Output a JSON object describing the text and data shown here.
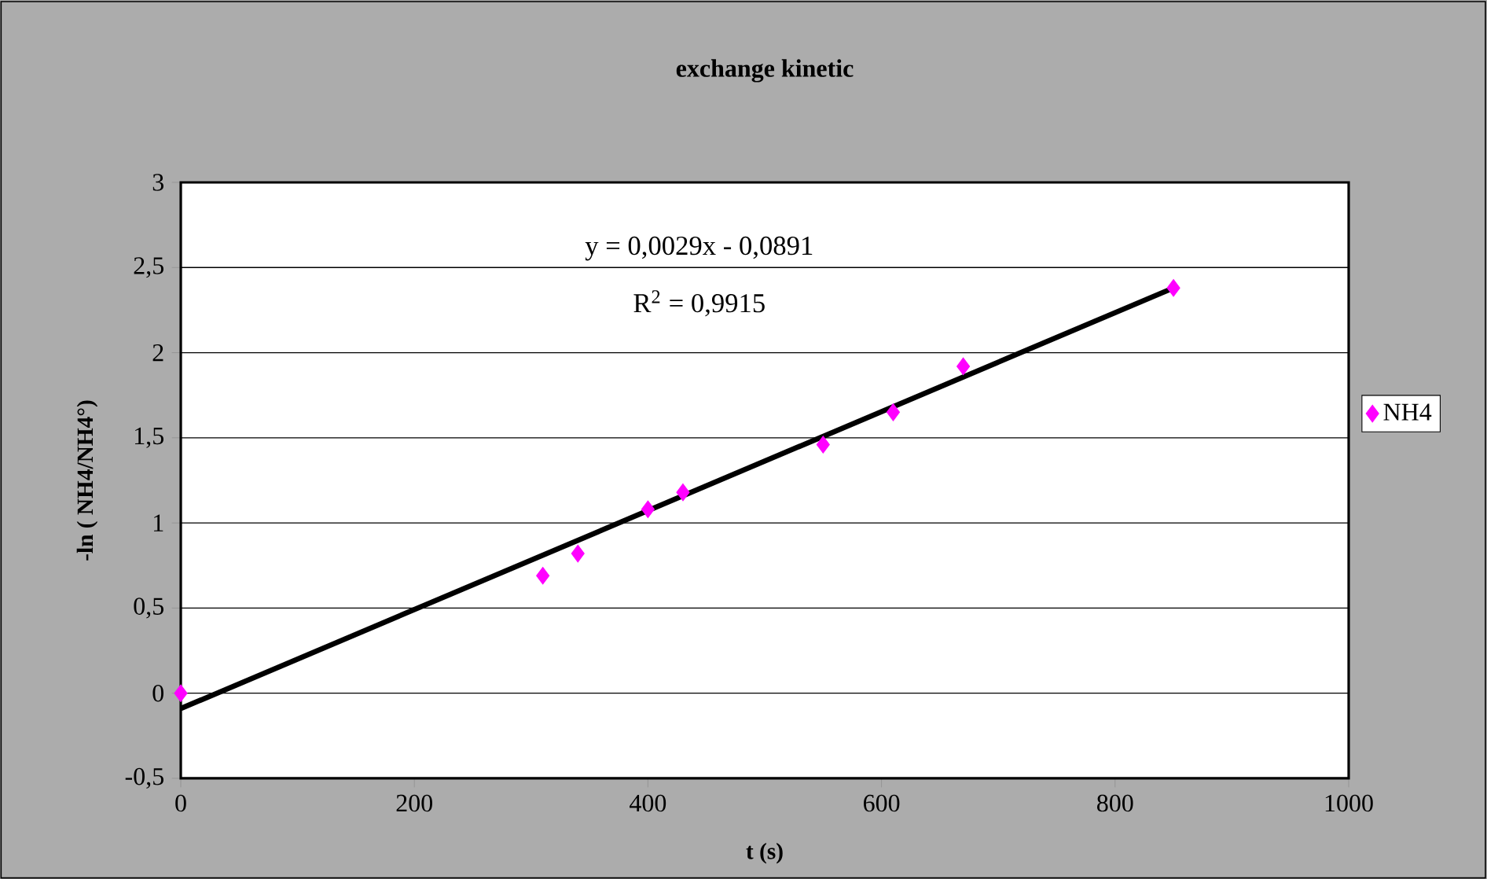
{
  "chart_data": {
    "type": "scatter",
    "title": "exchange kinetic",
    "xlabel": "t (s)",
    "ylabel": "-ln ( NH4/NH4°)",
    "xlim": [
      0,
      1000
    ],
    "xticks": [
      0,
      200,
      400,
      600,
      800,
      1000
    ],
    "ylim": [
      -0.5,
      3
    ],
    "yticks": [
      {
        "value": -0.5,
        "label": "-0,5"
      },
      0,
      {
        "value": 0.5,
        "label": "0,5"
      },
      1,
      {
        "value": 1.5,
        "label": "1,5"
      },
      2,
      {
        "value": 2.5,
        "label": "2,5"
      },
      3
    ],
    "grid": "y",
    "legend": "right",
    "marker": "diamond",
    "annotations": [
      "y = 0,0029x - 0,0891",
      "R$^{2}$ = 0,9915"
    ],
    "series": [
      {
        "name": "NH4",
        "color": "#ff00ff",
        "x": [
          0,
          310,
          340,
          400,
          430,
          550,
          610,
          670,
          850
        ],
        "values": [
          0,
          0.69,
          0.82,
          1.08,
          1.18,
          1.46,
          1.65,
          1.92,
          2.38
        ]
      },
      {
        "type": "line",
        "color": "#000000",
        "marker": "none",
        "x": [
          0,
          850
        ],
        "values": [
          -0.09,
          2.38
        ]
      }
    ]
  }
}
